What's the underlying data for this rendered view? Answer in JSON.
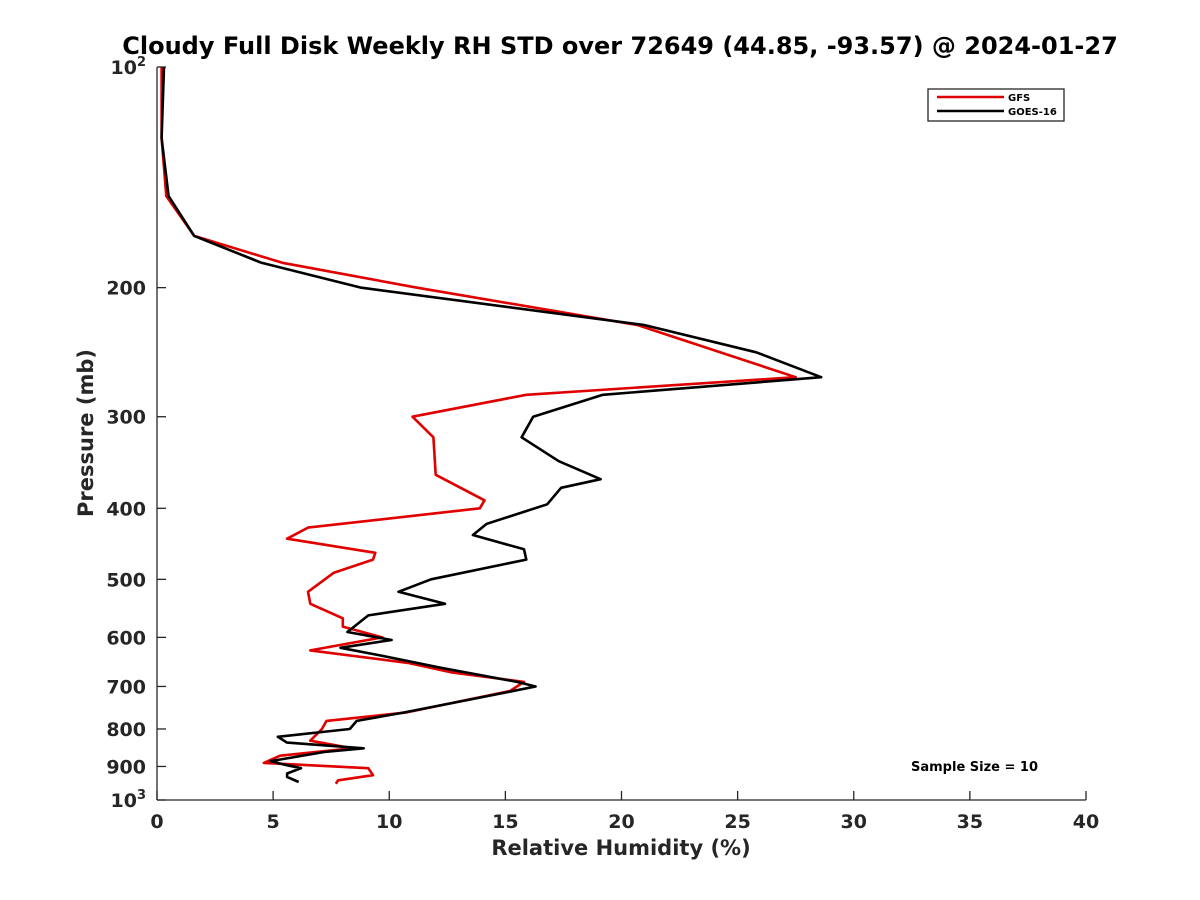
{
  "chart_data": {
    "type": "line",
    "title": "Cloudy Full Disk Weekly RH STD over 72649 (44.85, -93.57) @ 2024-01-27",
    "xlabel": "Relative Humidity (%)",
    "ylabel": "Pressure (mb)",
    "xlim": [
      0,
      40
    ],
    "ylim": [
      100,
      1000
    ],
    "y_scale": "log",
    "y_reversed": true,
    "x_ticks": [
      "0",
      "5",
      "10",
      "15",
      "20",
      "25",
      "30",
      "35",
      "40"
    ],
    "y_ticks": [
      {
        "value": 100,
        "base": "10",
        "exp": "2"
      },
      {
        "value": 200,
        "label": "200"
      },
      {
        "value": 300,
        "label": "300"
      },
      {
        "value": 400,
        "label": "400"
      },
      {
        "value": 500,
        "label": "500"
      },
      {
        "value": 600,
        "label": "600"
      },
      {
        "value": 700,
        "label": "700"
      },
      {
        "value": 800,
        "label": "800"
      },
      {
        "value": 900,
        "label": "900"
      },
      {
        "value": 1000,
        "base": "10",
        "exp": "3"
      }
    ],
    "grid": false,
    "legend_position": "top-right",
    "annotation": "Sample Size = 10",
    "series": [
      {
        "name": "GFS",
        "color": "#e00000",
        "points": [
          [
            0.2,
            100
          ],
          [
            0.2,
            125
          ],
          [
            0.4,
            150
          ],
          [
            1.6,
            170
          ],
          [
            5.4,
            185
          ],
          [
            11.2,
            200
          ],
          [
            20.7,
            225
          ],
          [
            27.5,
            265
          ],
          [
            15.9,
            280
          ],
          [
            11.0,
            300
          ],
          [
            11.9,
            320
          ],
          [
            12.0,
            360
          ],
          [
            14.1,
            390
          ],
          [
            13.9,
            400
          ],
          [
            6.5,
            425
          ],
          [
            5.6,
            440
          ],
          [
            9.4,
            460
          ],
          [
            9.3,
            470
          ],
          [
            7.6,
            490
          ],
          [
            6.5,
            520
          ],
          [
            6.6,
            540
          ],
          [
            8.0,
            565
          ],
          [
            8.0,
            580
          ],
          [
            9.7,
            600
          ],
          [
            6.6,
            625
          ],
          [
            10.8,
            650
          ],
          [
            12.7,
            670
          ],
          [
            15.8,
            690
          ],
          [
            15.2,
            710
          ],
          [
            10.7,
            760
          ],
          [
            7.3,
            780
          ],
          [
            7.1,
            800
          ],
          [
            6.6,
            830
          ],
          [
            8.4,
            850
          ],
          [
            5.3,
            870
          ],
          [
            4.6,
            890
          ],
          [
            9.1,
            905
          ],
          [
            9.3,
            925
          ],
          [
            7.8,
            940
          ],
          [
            7.7,
            950
          ]
        ]
      },
      {
        "name": "GOES-16",
        "color": "#000000",
        "points": [
          [
            0.3,
            100
          ],
          [
            0.2,
            125
          ],
          [
            0.5,
            150
          ],
          [
            1.6,
            170
          ],
          [
            4.5,
            185
          ],
          [
            8.8,
            200
          ],
          [
            21.0,
            225
          ],
          [
            25.8,
            245
          ],
          [
            28.6,
            265
          ],
          [
            19.2,
            280
          ],
          [
            16.2,
            300
          ],
          [
            15.7,
            320
          ],
          [
            17.3,
            345
          ],
          [
            19.1,
            365
          ],
          [
            17.4,
            375
          ],
          [
            16.8,
            395
          ],
          [
            14.2,
            420
          ],
          [
            13.6,
            435
          ],
          [
            15.8,
            455
          ],
          [
            15.9,
            470
          ],
          [
            11.8,
            500
          ],
          [
            10.4,
            520
          ],
          [
            12.4,
            540
          ],
          [
            9.1,
            560
          ],
          [
            8.2,
            590
          ],
          [
            10.1,
            605
          ],
          [
            7.9,
            620
          ],
          [
            9.6,
            635
          ],
          [
            12.2,
            660
          ],
          [
            15.5,
            690
          ],
          [
            16.3,
            700
          ],
          [
            13.9,
            725
          ],
          [
            10.6,
            760
          ],
          [
            8.6,
            780
          ],
          [
            8.3,
            800
          ],
          [
            5.2,
            820
          ],
          [
            5.6,
            835
          ],
          [
            8.9,
            850
          ],
          [
            7.2,
            860
          ],
          [
            4.9,
            885
          ],
          [
            5.5,
            895
          ],
          [
            6.2,
            905
          ],
          [
            5.6,
            920
          ],
          [
            5.6,
            930
          ],
          [
            6.1,
            945
          ]
        ]
      }
    ]
  }
}
